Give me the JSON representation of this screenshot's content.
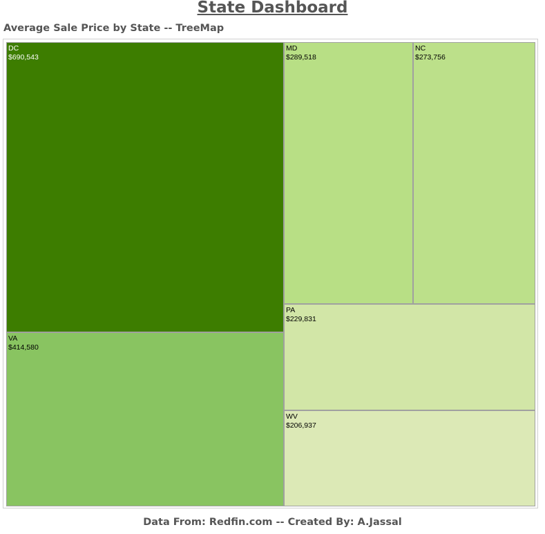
{
  "header": {
    "title": "State Dashboard",
    "subtitle": "Average Sale Price by State -- TreeMap"
  },
  "footer": {
    "credit": "Data From: Redfin.com -- Created By: A.Jassal"
  },
  "colors": {
    "tile_border": "#a0a0a0",
    "frame_border": "#cfcfcf",
    "dark_label": "#ffffff",
    "light_label": "#000000"
  },
  "chart_data": {
    "type": "treemap",
    "title": "Average Sale Price by State -- TreeMap",
    "measure": "Average Sale Price",
    "items": [
      {
        "state": "DC",
        "value": 690543,
        "label": "$690,543",
        "color": "#3d7d00"
      },
      {
        "state": "VA",
        "value": 414580,
        "label": "$414,580",
        "color": "#89c461"
      },
      {
        "state": "MD",
        "value": 289518,
        "label": "$289,518",
        "color": "#b8df85"
      },
      {
        "state": "NC",
        "value": 273756,
        "label": "$273,756",
        "color": "#bce08a"
      },
      {
        "state": "PA",
        "value": 229831,
        "label": "$229,831",
        "color": "#d2e6a7"
      },
      {
        "state": "WV",
        "value": 206937,
        "label": "$206,937",
        "color": "#dce9b6"
      }
    ]
  }
}
